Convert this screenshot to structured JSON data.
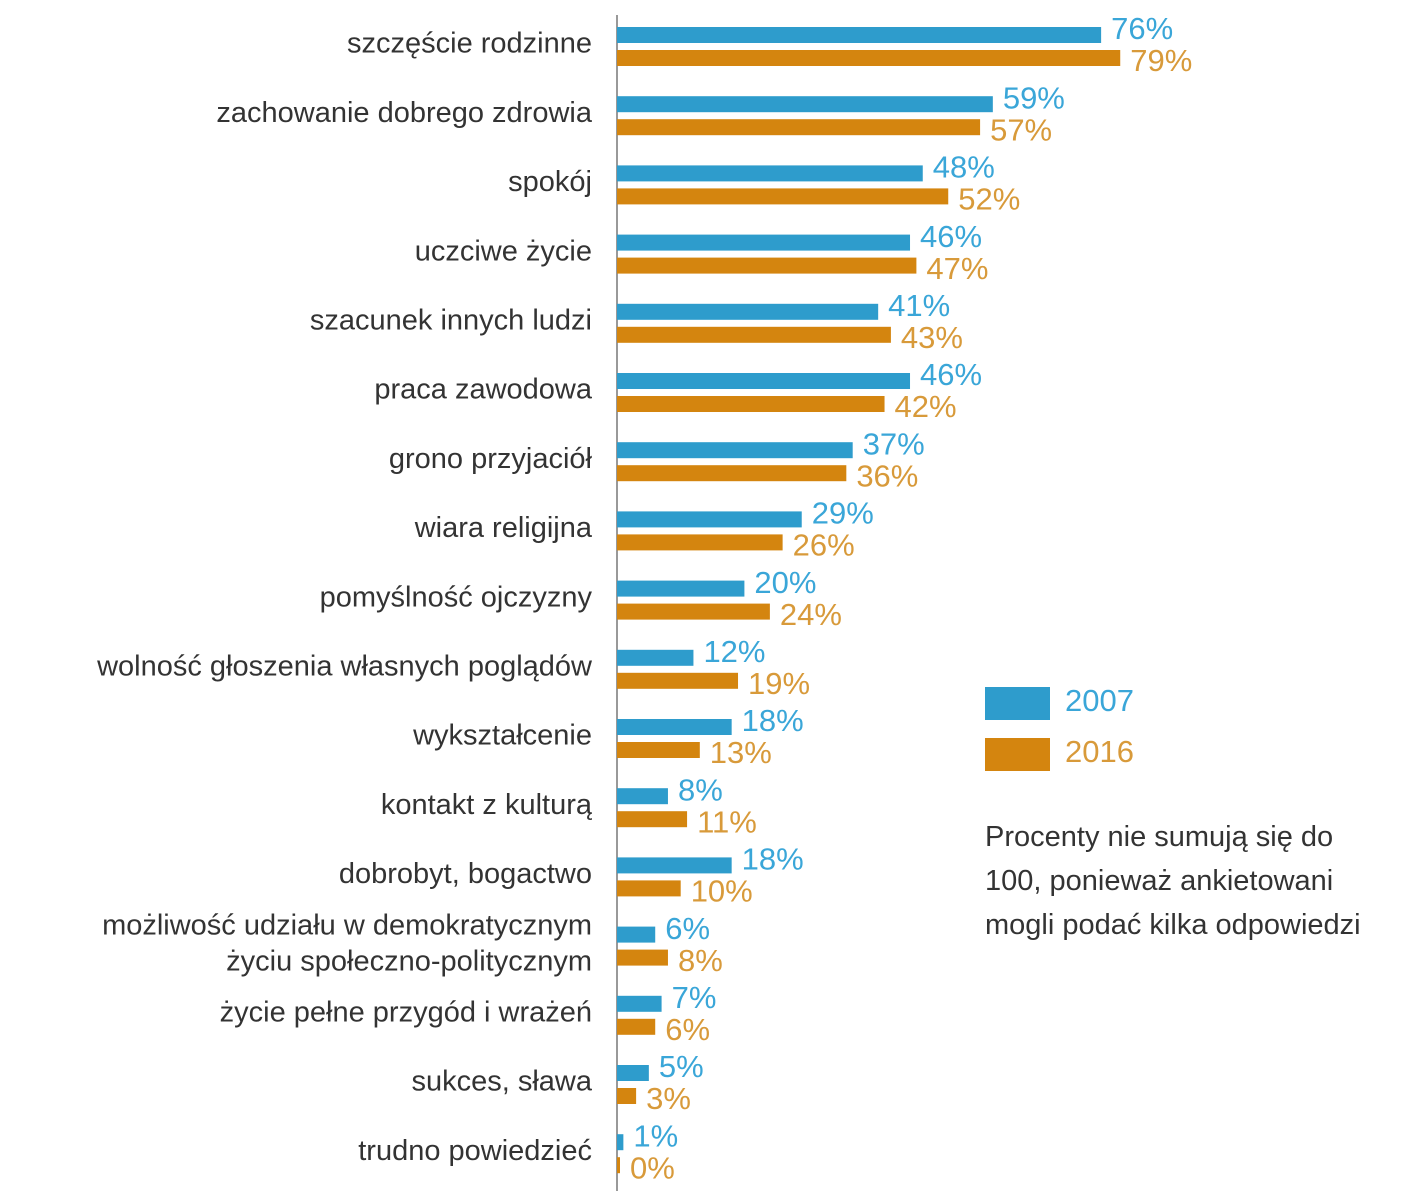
{
  "chart_data": {
    "type": "hbar",
    "categories": [
      "szczęście rodzinne",
      "zachowanie dobrego zdrowia",
      "spokój",
      "uczciwe życie",
      "szacunek innych ludzi",
      "praca zawodowa",
      "grono przyjaciół",
      "wiara religijna",
      "pomyślność ojczyzny",
      "wolność głoszenia własnych poglądów",
      "wykształcenie",
      "kontakt z kulturą",
      "dobrobyt, bogactwo",
      "możliwość udziału w demokratycznym\nżyciu społeczno-politycznym",
      "życie pełne przygód i wrażeń",
      "sukces, sława",
      "trudno powiedzieć"
    ],
    "series": [
      {
        "name": "2007",
        "color": "#2e9ccc",
        "label_color": "#3aa6d8",
        "values": [
          76,
          59,
          48,
          46,
          41,
          46,
          37,
          29,
          20,
          12,
          18,
          8,
          18,
          6,
          7,
          5,
          1
        ],
        "value_labels": [
          "76%",
          "59%",
          "48%",
          "46%",
          "41%",
          "46%",
          "37%",
          "29%",
          "20%",
          "12%",
          "18%",
          "8%",
          "18%",
          "6%",
          "7%",
          "5%",
          "1%"
        ]
      },
      {
        "name": "2016",
        "color": "#d4850f",
        "label_color": "#d89a3a",
        "values": [
          79,
          57,
          52,
          47,
          43,
          42,
          36,
          26,
          24,
          19,
          13,
          11,
          10,
          8,
          6,
          3,
          0
        ],
        "value_labels": [
          "79%",
          "57%",
          "52%",
          "47%",
          "43%",
          "42%",
          "36%",
          "26%",
          "24%",
          "19%",
          "13%",
          "11%",
          "10%",
          "8%",
          "6%",
          "3%",
          "0%"
        ]
      }
    ],
    "xlim": [
      0,
      100
    ],
    "note": "Procenty nie sumują się do\n100, ponieważ ankietowani\nmogli podać kilka odpowiedzi"
  }
}
